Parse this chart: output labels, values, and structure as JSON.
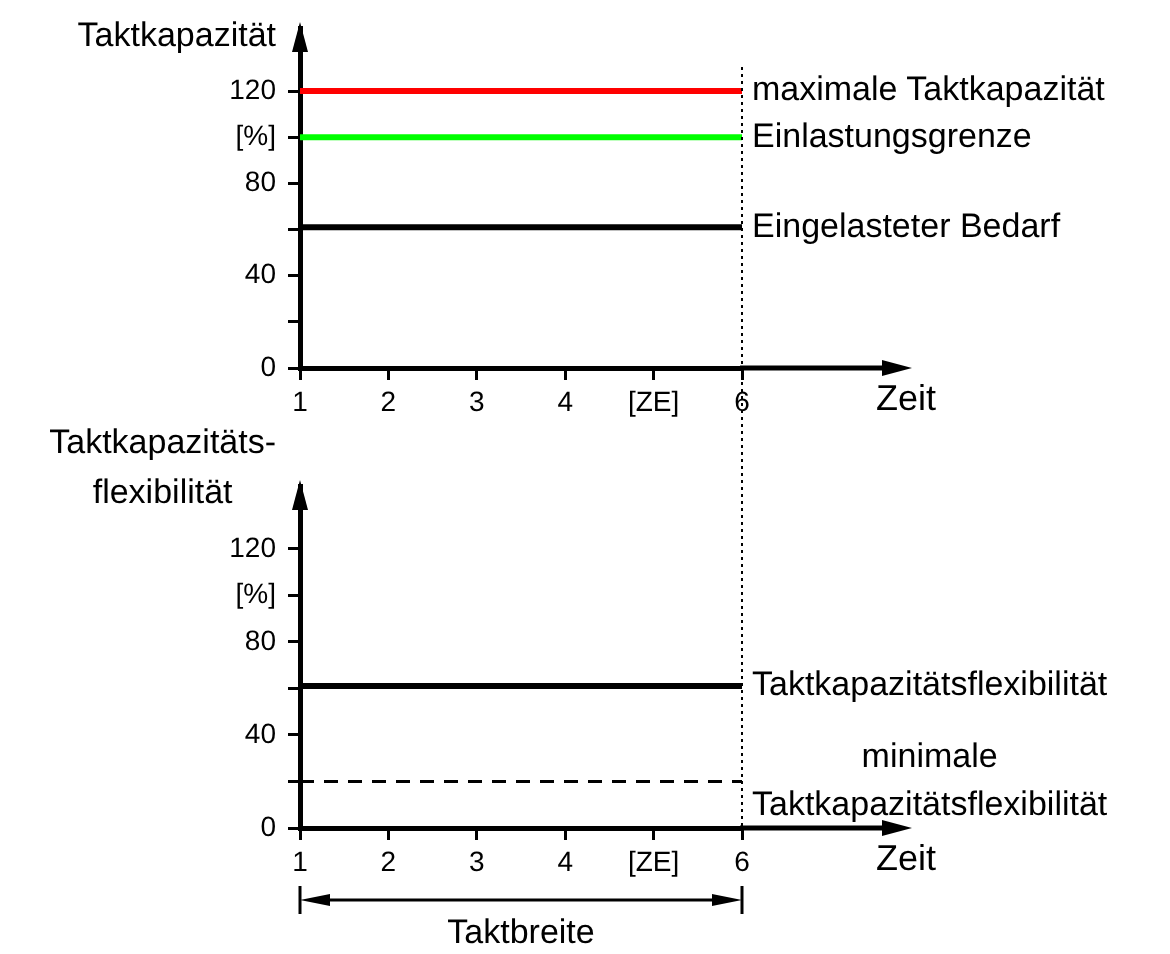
{
  "chart_data": [
    {
      "type": "line",
      "ylabel": "Taktkapazität",
      "xlabel": "Zeit",
      "categories": [
        "1",
        "2",
        "3",
        "4",
        "[ZE]",
        "6"
      ],
      "ylim": [
        0,
        147
      ],
      "yticks": [
        0,
        {
          "value": 20,
          "label": null
        },
        40,
        {
          "value": 60,
          "label": null
        },
        80,
        {
          "value": 100,
          "label": "[%]"
        },
        120
      ],
      "series": [
        {
          "name": "maximale Taktkapazität",
          "color": "#ff0000",
          "values": [
            120,
            120,
            120,
            120,
            120,
            120
          ]
        },
        {
          "name": "Einlastungsgrenze",
          "color": "#00ff00",
          "values": [
            100,
            100,
            100,
            100,
            100,
            100
          ]
        },
        {
          "name": "Eingelasteter Bedarf",
          "color": "#000000",
          "values": [
            61,
            61,
            61,
            61,
            61,
            61
          ]
        }
      ],
      "ref_lines": [
        {
          "axis": "x",
          "value": "6",
          "color": "#000000",
          "line_style": "dotted"
        }
      ]
    },
    {
      "type": "line",
      "ylabel": "Taktkapazitäts-flexibilität",
      "xlabel": "Zeit",
      "categories": [
        "1",
        "2",
        "3",
        "4",
        "[ZE]",
        "6"
      ],
      "ylim": [
        0,
        147
      ],
      "yticks": [
        0,
        {
          "value": 20,
          "label": null
        },
        40,
        {
          "value": 60,
          "label": null
        },
        80,
        {
          "value": 100,
          "label": "[%]"
        },
        120
      ],
      "series": [
        {
          "name": "Taktkapazitätsflexibilität",
          "color": "#000000",
          "values": [
            61,
            61,
            61,
            61,
            61,
            61
          ]
        },
        {
          "name": "minimale Taktkapazitätsflexibilität",
          "color": "#000000",
          "values": [
            20,
            20,
            20,
            20,
            20,
            20
          ],
          "line_style": "dashed"
        }
      ],
      "ref_lines": [
        {
          "axis": "x",
          "value": "6",
          "color": "#000000",
          "line_style": "dotted"
        }
      ],
      "annotations": [
        "Taktbreite"
      ]
    }
  ]
}
